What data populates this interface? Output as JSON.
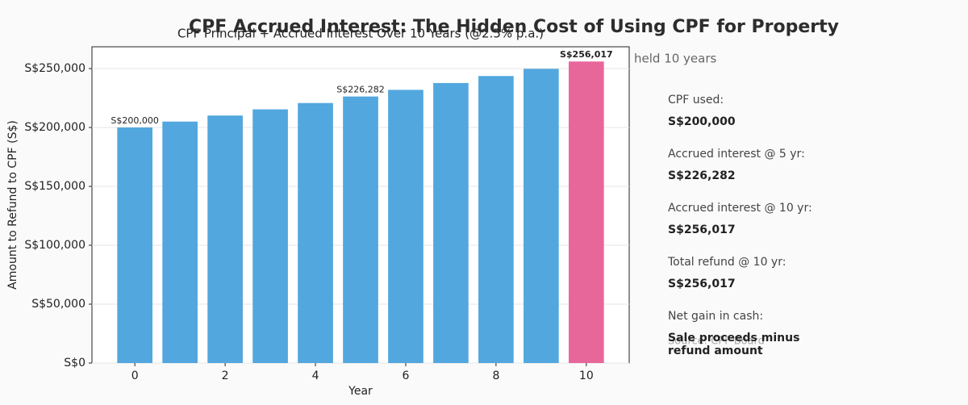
{
  "chart_data": {
    "type": "bar",
    "title": "CPF Accrued Interest: The Hidden Cost of Using CPF for Property",
    "subtitle": "CPF Principal + Accrued Interest Over 10 Years (@2.5% p.a.)",
    "x_label": "Year",
    "y_label": "Amount to Refund to CPF (S$)",
    "x": [
      0,
      1,
      2,
      3,
      4,
      5,
      6,
      7,
      8,
      9,
      10
    ],
    "values": [
      200000,
      205000,
      210125,
      215378,
      220763,
      226282,
      231939,
      237737,
      243681,
      249773,
      256017
    ],
    "value_labels": [
      "S$200,000",
      null,
      null,
      null,
      null,
      "S$226,282",
      null,
      null,
      null,
      null,
      "S$256,017"
    ],
    "colors": [
      "#52a7de",
      "#52a7de",
      "#52a7de",
      "#52a7de",
      "#52a7de",
      "#52a7de",
      "#52a7de",
      "#52a7de",
      "#52a7de",
      "#52a7de",
      "#e8679b"
    ],
    "xlim": [
      -0.95,
      10.95
    ],
    "xticks": [
      0,
      2,
      4,
      6,
      8,
      10
    ],
    "ylim": [
      0,
      268500
    ],
    "yticks": [
      {
        "value": 0,
        "label": "S$0"
      },
      {
        "value": 50000,
        "label": "S$50,000"
      },
      {
        "value": 100000,
        "label": "S$100,000"
      },
      {
        "value": 150000,
        "label": "S$150,000"
      },
      {
        "value": 200000,
        "label": "S$200,000"
      },
      {
        "value": 250000,
        "label": "S$250,000"
      }
    ],
    "grid": true
  },
  "annotation": "held 10 years",
  "side_panel": [
    {
      "label": "CPF used:",
      "value": "S$200,000"
    },
    {
      "label": "Accrued interest @ 5 yr:",
      "value": "S$226,282"
    },
    {
      "label": "Accrued interest @ 10 yr:",
      "value": "S$256,017"
    },
    {
      "label": "Total refund @ 10 yr:",
      "value": "S$256,017"
    },
    {
      "label": "Net gain in cash:",
      "value": "Sale proceeds minus refund amount"
    }
  ],
  "source": "Source: CPF Board"
}
